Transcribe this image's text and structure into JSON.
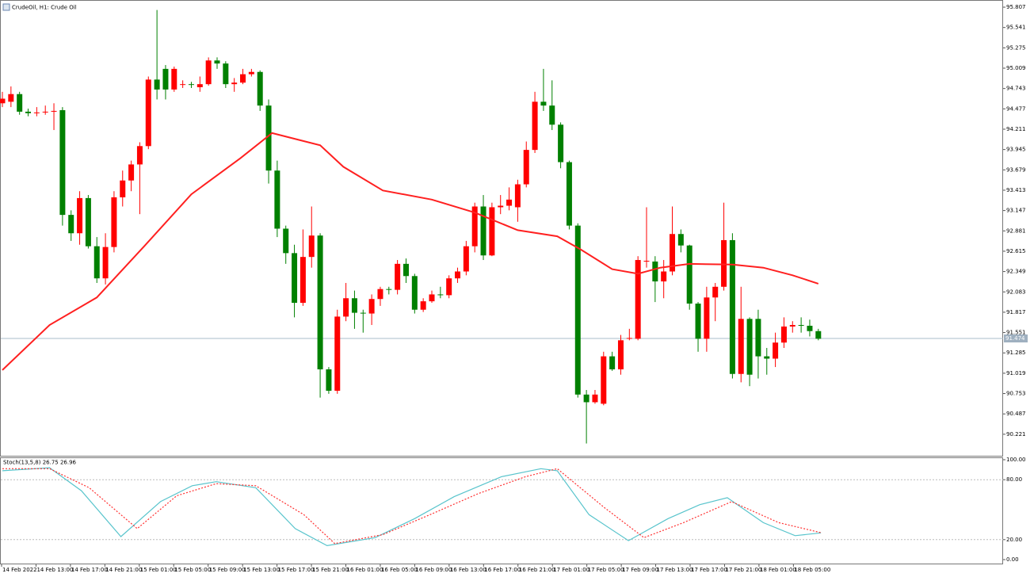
{
  "chart_data": [
    {
      "type": "candlestick",
      "title": "CrudeOil, H1: Crude Oil",
      "up_color": "#ff0000",
      "down_color": "#008000",
      "open": [
        94.55,
        94.57,
        94.67,
        94.44,
        94.42,
        94.43,
        94.44,
        94.46,
        93.09,
        92.85,
        93.31,
        92.68,
        92.26,
        92.67,
        93.32,
        93.54,
        93.75,
        93.99,
        94.86,
        95.0,
        94.73,
        94.79,
        94.8,
        94.76,
        94.8,
        95.11,
        95.07,
        94.8,
        94.82,
        94.93,
        94.96,
        94.52,
        93.67,
        92.91,
        92.59,
        91.94,
        92.54,
        92.82,
        91.07,
        90.79,
        91.76,
        92.0,
        91.81,
        91.8,
        91.99,
        92.12,
        92.11,
        92.45,
        92.29,
        91.85,
        91.96,
        92.05,
        92.04,
        92.26,
        92.35,
        92.68,
        93.2,
        92.56,
        93.19,
        93.21,
        93.19,
        93.49,
        93.94,
        94.57,
        94.52,
        94.27,
        93.78,
        92.95,
        90.74,
        90.64,
        90.62,
        91.24,
        91.07,
        91.47,
        91.47,
        92.48,
        92.48,
        92.22,
        92.35,
        92.84,
        92.69,
        91.93,
        91.47,
        92.01,
        92.15,
        92.76,
        91.01,
        91.73,
        91.73,
        91.24,
        91.21,
        91.42,
        91.63,
        91.65,
        91.64,
        91.57
      ],
      "high": [
        94.7,
        94.77,
        94.7,
        94.48,
        94.5,
        94.52,
        94.55,
        94.5,
        93.15,
        93.4,
        93.35,
        92.8,
        92.85,
        93.4,
        93.67,
        93.8,
        94.04,
        94.9,
        95.77,
        95.05,
        95.03,
        94.85,
        94.83,
        94.9,
        95.15,
        95.15,
        95.1,
        94.88,
        95.0,
        95.0,
        94.98,
        94.6,
        93.8,
        92.95,
        92.7,
        92.9,
        93.2,
        92.85,
        91.1,
        91.85,
        92.2,
        92.1,
        91.85,
        92.05,
        92.15,
        92.15,
        92.5,
        92.52,
        92.32,
        92.0,
        92.1,
        92.15,
        92.3,
        92.4,
        92.75,
        93.25,
        93.35,
        93.25,
        93.35,
        93.45,
        93.55,
        94.05,
        94.7,
        95.0,
        94.85,
        94.3,
        93.8,
        92.98,
        90.8,
        90.8,
        91.3,
        91.3,
        91.52,
        91.6,
        92.55,
        93.19,
        92.55,
        92.5,
        93.2,
        92.9,
        92.7,
        91.95,
        92.15,
        92.2,
        93.25,
        92.85,
        92.15,
        91.75,
        91.85,
        91.35,
        91.55,
        91.75,
        91.7,
        91.75,
        91.72,
        91.6
      ],
      "low": [
        94.5,
        94.5,
        94.4,
        94.38,
        94.38,
        94.4,
        94.2,
        92.95,
        92.75,
        92.7,
        92.65,
        92.2,
        92.18,
        92.6,
        93.2,
        93.4,
        93.1,
        93.95,
        94.6,
        94.6,
        94.7,
        94.75,
        94.75,
        94.7,
        94.78,
        95.0,
        94.75,
        94.7,
        94.8,
        94.9,
        94.45,
        93.5,
        92.8,
        92.45,
        91.75,
        91.9,
        92.4,
        90.7,
        90.75,
        90.75,
        91.7,
        91.6,
        91.55,
        91.65,
        91.9,
        92.05,
        92.05,
        92.2,
        91.8,
        91.82,
        91.94,
        92.0,
        92.0,
        92.2,
        92.3,
        92.6,
        92.5,
        92.55,
        93.1,
        93.15,
        93.0,
        93.45,
        93.9,
        94.45,
        94.2,
        93.7,
        92.9,
        90.7,
        90.1,
        90.62,
        90.6,
        91.05,
        91.0,
        91.45,
        91.45,
        92.4,
        91.95,
        92.0,
        92.3,
        92.6,
        91.85,
        91.3,
        91.3,
        91.7,
        92.1,
        90.95,
        90.9,
        90.85,
        90.95,
        91.0,
        91.1,
        91.35,
        91.55,
        91.55,
        91.5,
        91.45
      ],
      "close": [
        94.61,
        94.67,
        94.44,
        94.42,
        94.43,
        94.44,
        94.45,
        93.09,
        92.85,
        93.31,
        92.68,
        92.26,
        92.67,
        93.32,
        93.54,
        93.75,
        93.99,
        94.86,
        94.73,
        94.73,
        95.0,
        94.8,
        94.79,
        94.8,
        95.11,
        95.07,
        94.8,
        94.82,
        94.93,
        94.96,
        94.52,
        93.67,
        92.91,
        92.59,
        91.94,
        92.54,
        92.82,
        91.07,
        90.79,
        91.76,
        92.0,
        91.81,
        91.8,
        91.99,
        92.12,
        92.11,
        92.45,
        92.29,
        91.85,
        91.96,
        92.05,
        92.04,
        92.26,
        92.35,
        92.68,
        93.2,
        92.56,
        93.19,
        93.21,
        93.29,
        93.49,
        93.94,
        94.57,
        94.52,
        94.27,
        93.78,
        92.95,
        90.74,
        90.64,
        90.74,
        91.24,
        91.07,
        91.45,
        91.48,
        92.5,
        92.49,
        92.22,
        92.35,
        92.84,
        92.69,
        91.93,
        91.47,
        92.01,
        92.15,
        92.76,
        91.01,
        91.73,
        91.0,
        91.24,
        91.21,
        91.42,
        91.63,
        91.65,
        91.64,
        91.57,
        91.47
      ],
      "ma": {
        "color": "#ff2020",
        "x": [
          0,
          5.5,
          11,
          16.6,
          22,
          27.7,
          31.4,
          37,
          39.7,
          44.3,
          50,
          55,
          60,
          64.6,
          67.3,
          71,
          74,
          76.6,
          80,
          85,
          88.6,
          92,
          95
        ],
        "values": [
          91.06,
          91.65,
          92.01,
          92.69,
          93.36,
          93.83,
          94.16,
          94.0,
          93.72,
          93.41,
          93.29,
          93.12,
          92.89,
          92.81,
          92.64,
          92.38,
          92.32,
          92.4,
          92.45,
          92.44,
          92.4,
          92.3,
          92.19
        ]
      },
      "last_price": 91.474,
      "ylim": [
        89.95,
        95.88
      ],
      "yticks": [
        95.807,
        95.541,
        95.275,
        95.009,
        94.743,
        94.477,
        94.211,
        93.945,
        93.679,
        93.413,
        93.147,
        92.881,
        92.615,
        92.349,
        92.083,
        91.817,
        91.551,
        91.285,
        91.019,
        90.753,
        90.487,
        90.221
      ],
      "xtick_labels": [
        "14 Feb 2022",
        "14 Feb 13:00",
        "14 Feb 17:00",
        "14 Feb 21:00",
        "15 Feb 01:00",
        "15 Feb 05:00",
        "15 Feb 09:00",
        "15 Feb 13:00",
        "15 Feb 17:00",
        "15 Feb 21:00",
        "16 Feb 01:00",
        "16 Feb 05:00",
        "16 Feb 09:00",
        "16 Feb 13:00",
        "16 Feb 17:00",
        "16 Feb 21:00",
        "17 Feb 01:00",
        "17 Feb 05:00",
        "17 Feb 09:00",
        "17 Feb 13:00",
        "17 Feb 17:00",
        "17 Feb 21:00",
        "18 Feb 01:00",
        "18 Feb 05:00"
      ]
    },
    {
      "type": "line",
      "title": "Stoch(13,5,8) 26.75 26.96",
      "ylim": [
        0,
        100
      ],
      "yticks": [
        {
          "value": 100,
          "label": "100.00"
        },
        {
          "value": 80,
          "label": "80.00"
        },
        {
          "value": 20,
          "label": "20.00"
        },
        {
          "value": 0,
          "label": "0.00"
        }
      ],
      "levels": [
        80,
        20
      ],
      "series": [
        {
          "color": "#58c4cc",
          "dashed": false,
          "x": [
            0,
            5.5,
            9.2,
            13.8,
            18.4,
            22.1,
            24.9,
            29.5,
            34.1,
            37.8,
            43.4,
            48,
            52.6,
            58.1,
            62.7,
            64.6,
            68.3,
            72.9,
            77.5,
            81.2,
            84.4,
            88.6,
            92.3,
            95.3
          ],
          "values": [
            89,
            92,
            69,
            23,
            58,
            74,
            78,
            72,
            31,
            14,
            22,
            41,
            63,
            83,
            91,
            89,
            45,
            19,
            41,
            55,
            62,
            37,
            24,
            26.75
          ]
        },
        {
          "color": "#ff3030",
          "dashed": true,
          "x": [
            0,
            5.5,
            10.1,
            15.7,
            20.3,
            24.9,
            29.5,
            35.1,
            38.7,
            44.3,
            49.8,
            55.4,
            60.9,
            64.6,
            70.1,
            74.7,
            79.3,
            84.9,
            90.4,
            95.3
          ],
          "values": [
            91,
            91,
            72,
            31,
            64,
            76,
            74,
            45,
            16,
            25,
            45,
            66,
            83,
            91,
            52,
            22,
            37,
            58,
            37,
            26.96
          ]
        }
      ]
    }
  ]
}
